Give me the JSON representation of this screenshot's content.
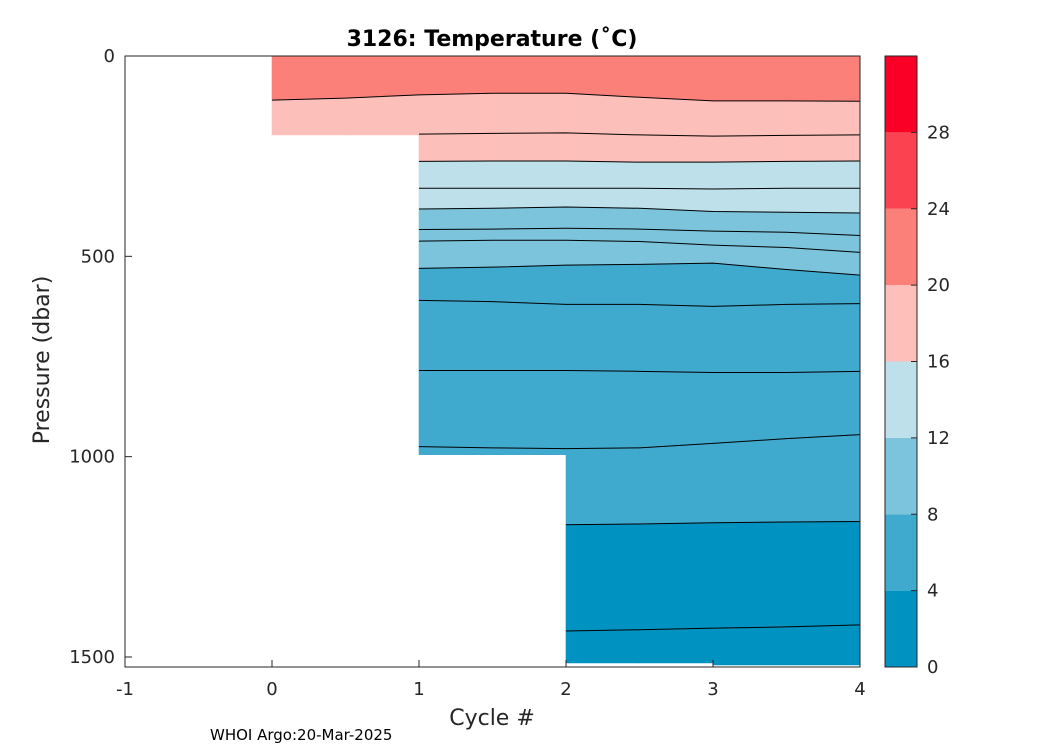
{
  "chart_data": {
    "type": "contour",
    "title": "3126:  Temperature (˚C)",
    "xlabel": "Cycle #",
    "ylabel": "Pressure (dbar)",
    "footer": "WHOI Argo:20-Mar-2025",
    "x_ticks": [
      -1,
      0,
      1,
      2,
      3,
      4
    ],
    "x_tick_labels": [
      "-1",
      "0",
      "1",
      "2",
      "3",
      "4"
    ],
    "y_ticks": [
      0,
      500,
      1000,
      1500
    ],
    "y_tick_labels": [
      "0",
      "500",
      "1000",
      "1500"
    ],
    "xlim": [
      -1,
      4
    ],
    "ylim": [
      0,
      1525
    ],
    "y_reversed": true,
    "grid": false,
    "colorbar": {
      "levels": [
        0,
        4,
        8,
        12,
        16,
        20,
        24,
        28,
        32
      ],
      "tick_values": [
        0,
        4,
        8,
        12,
        16,
        20,
        24,
        28
      ],
      "tick_labels": [
        "0",
        "4",
        "8",
        "12",
        "16",
        "20",
        "24",
        "28"
      ],
      "colors": [
        "#0093c1",
        "#40a9ce",
        "#7cc3dc",
        "#bee0eb",
        "#fdbfb9",
        "#fb8079",
        "#fa4251",
        "#fa0027"
      ]
    },
    "profiles": [
      {
        "cycle": 0,
        "max_pressure": 197
      },
      {
        "cycle": 1,
        "max_pressure": 995
      },
      {
        "cycle": 2,
        "max_pressure": 1515
      },
      {
        "cycle": 3,
        "max_pressure": 1520
      },
      {
        "cycle": 4,
        "max_pressure": 1525
      }
    ],
    "data_x": [
      0,
      0.5,
      1,
      1.5,
      2,
      2.5,
      3,
      3.5,
      4
    ],
    "isotherms": [
      {
        "temperature": 20,
        "pressure": [
          110,
          105,
          97,
          93,
          93,
          103,
          112,
          112,
          113
        ]
      },
      {
        "temperature": 18,
        "pressure": [
          null,
          null,
          195,
          193,
          192,
          197,
          200,
          198,
          197
        ]
      },
      {
        "temperature": 16,
        "pressure": [
          null,
          null,
          263,
          262,
          262,
          265,
          265,
          263,
          262
        ]
      },
      {
        "temperature": 14,
        "pressure": [
          null,
          null,
          330,
          330,
          330,
          330,
          332,
          330,
          330
        ]
      },
      {
        "temperature": 12,
        "pressure": [
          null,
          null,
          382,
          380,
          377,
          380,
          388,
          390,
          392
        ]
      },
      {
        "temperature": 11,
        "pressure": [
          null,
          null,
          433,
          432,
          430,
          432,
          437,
          440,
          448
        ]
      },
      {
        "temperature": 10,
        "pressure": [
          null,
          null,
          462,
          460,
          460,
          463,
          472,
          478,
          490
        ]
      },
      {
        "temperature": 8,
        "pressure": [
          null,
          null,
          530,
          527,
          522,
          520,
          517,
          533,
          547
        ]
      },
      {
        "temperature": 7,
        "pressure": [
          null,
          null,
          610,
          613,
          620,
          620,
          625,
          620,
          618
        ]
      },
      {
        "temperature": 6,
        "pressure": [
          null,
          null,
          785,
          785,
          785,
          787,
          790,
          790,
          787
        ]
      },
      {
        "temperature": 5,
        "pressure": [
          null,
          null,
          975,
          978,
          980,
          978,
          967,
          955,
          945
        ]
      },
      {
        "temperature": 4,
        "pressure": [
          null,
          null,
          null,
          null,
          1170,
          1168,
          1165,
          1163,
          1162
        ]
      },
      {
        "temperature": 3,
        "pressure": [
          null,
          null,
          null,
          null,
          1435,
          1432,
          1428,
          1425,
          1420
        ]
      }
    ]
  }
}
